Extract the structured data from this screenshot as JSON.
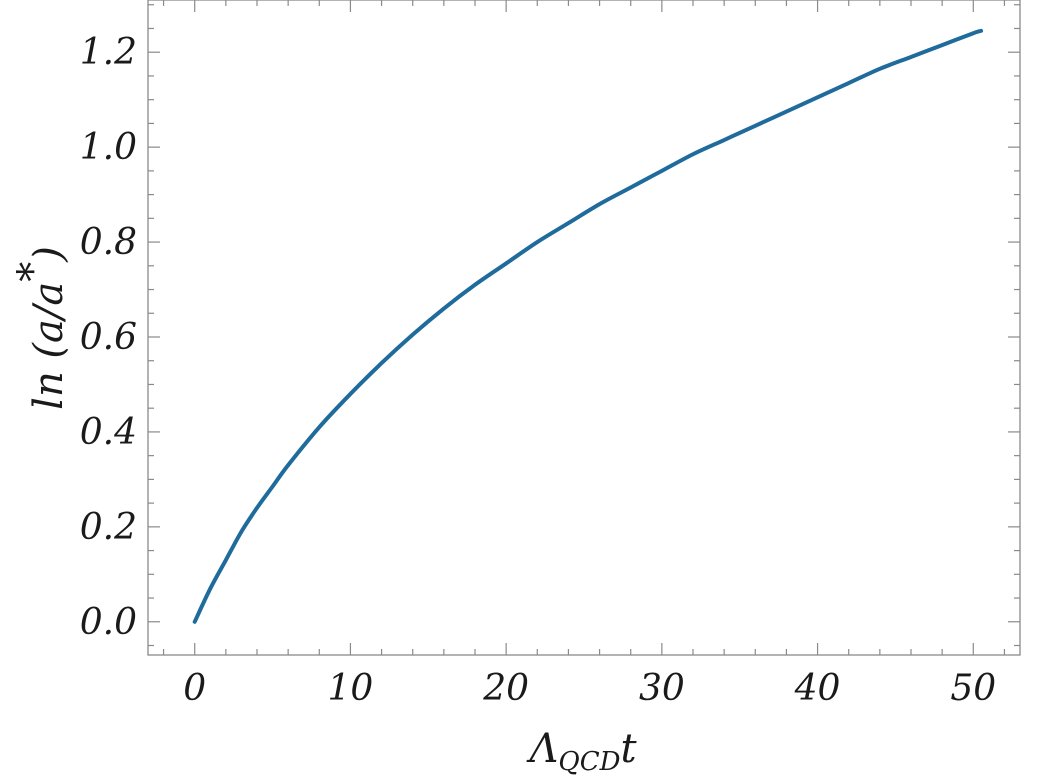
{
  "chart_data": {
    "type": "line",
    "title": "",
    "xlabel": {
      "main": "Λ",
      "sub": "QCD",
      "tail": "t"
    },
    "ylabel": {
      "prefix": "ln (",
      "a": "a",
      "slash": "/",
      "astar": "a",
      "star": "*",
      "suffix": ")"
    },
    "xlim": [
      -3,
      53
    ],
    "ylim": [
      -0.07,
      1.31
    ],
    "x_ticks": [
      0,
      10,
      20,
      30,
      40,
      50
    ],
    "x_tick_labels": [
      "0",
      "10",
      "20",
      "30",
      "40",
      "50"
    ],
    "y_ticks": [
      0.0,
      0.2,
      0.4,
      0.6,
      0.8,
      1.0,
      1.2
    ],
    "y_tick_labels": [
      "0.0",
      "0.2",
      "0.4",
      "0.6",
      "0.8",
      "1.0",
      "1.2"
    ],
    "grid": false,
    "series": [
      {
        "color": "#1f6b9c",
        "x": [
          0,
          1,
          2,
          3,
          4,
          5,
          6,
          8,
          10,
          12,
          14,
          16,
          18,
          20,
          22,
          24,
          26,
          28,
          30,
          32,
          34,
          36,
          38,
          40,
          42,
          44,
          46,
          48,
          50,
          50.5
        ],
        "y": [
          0.0,
          0.07,
          0.13,
          0.19,
          0.24,
          0.285,
          0.33,
          0.41,
          0.48,
          0.545,
          0.605,
          0.66,
          0.71,
          0.755,
          0.8,
          0.84,
          0.88,
          0.915,
          0.95,
          0.985,
          1.015,
          1.045,
          1.075,
          1.105,
          1.135,
          1.165,
          1.19,
          1.215,
          1.24,
          1.245
        ]
      }
    ]
  }
}
